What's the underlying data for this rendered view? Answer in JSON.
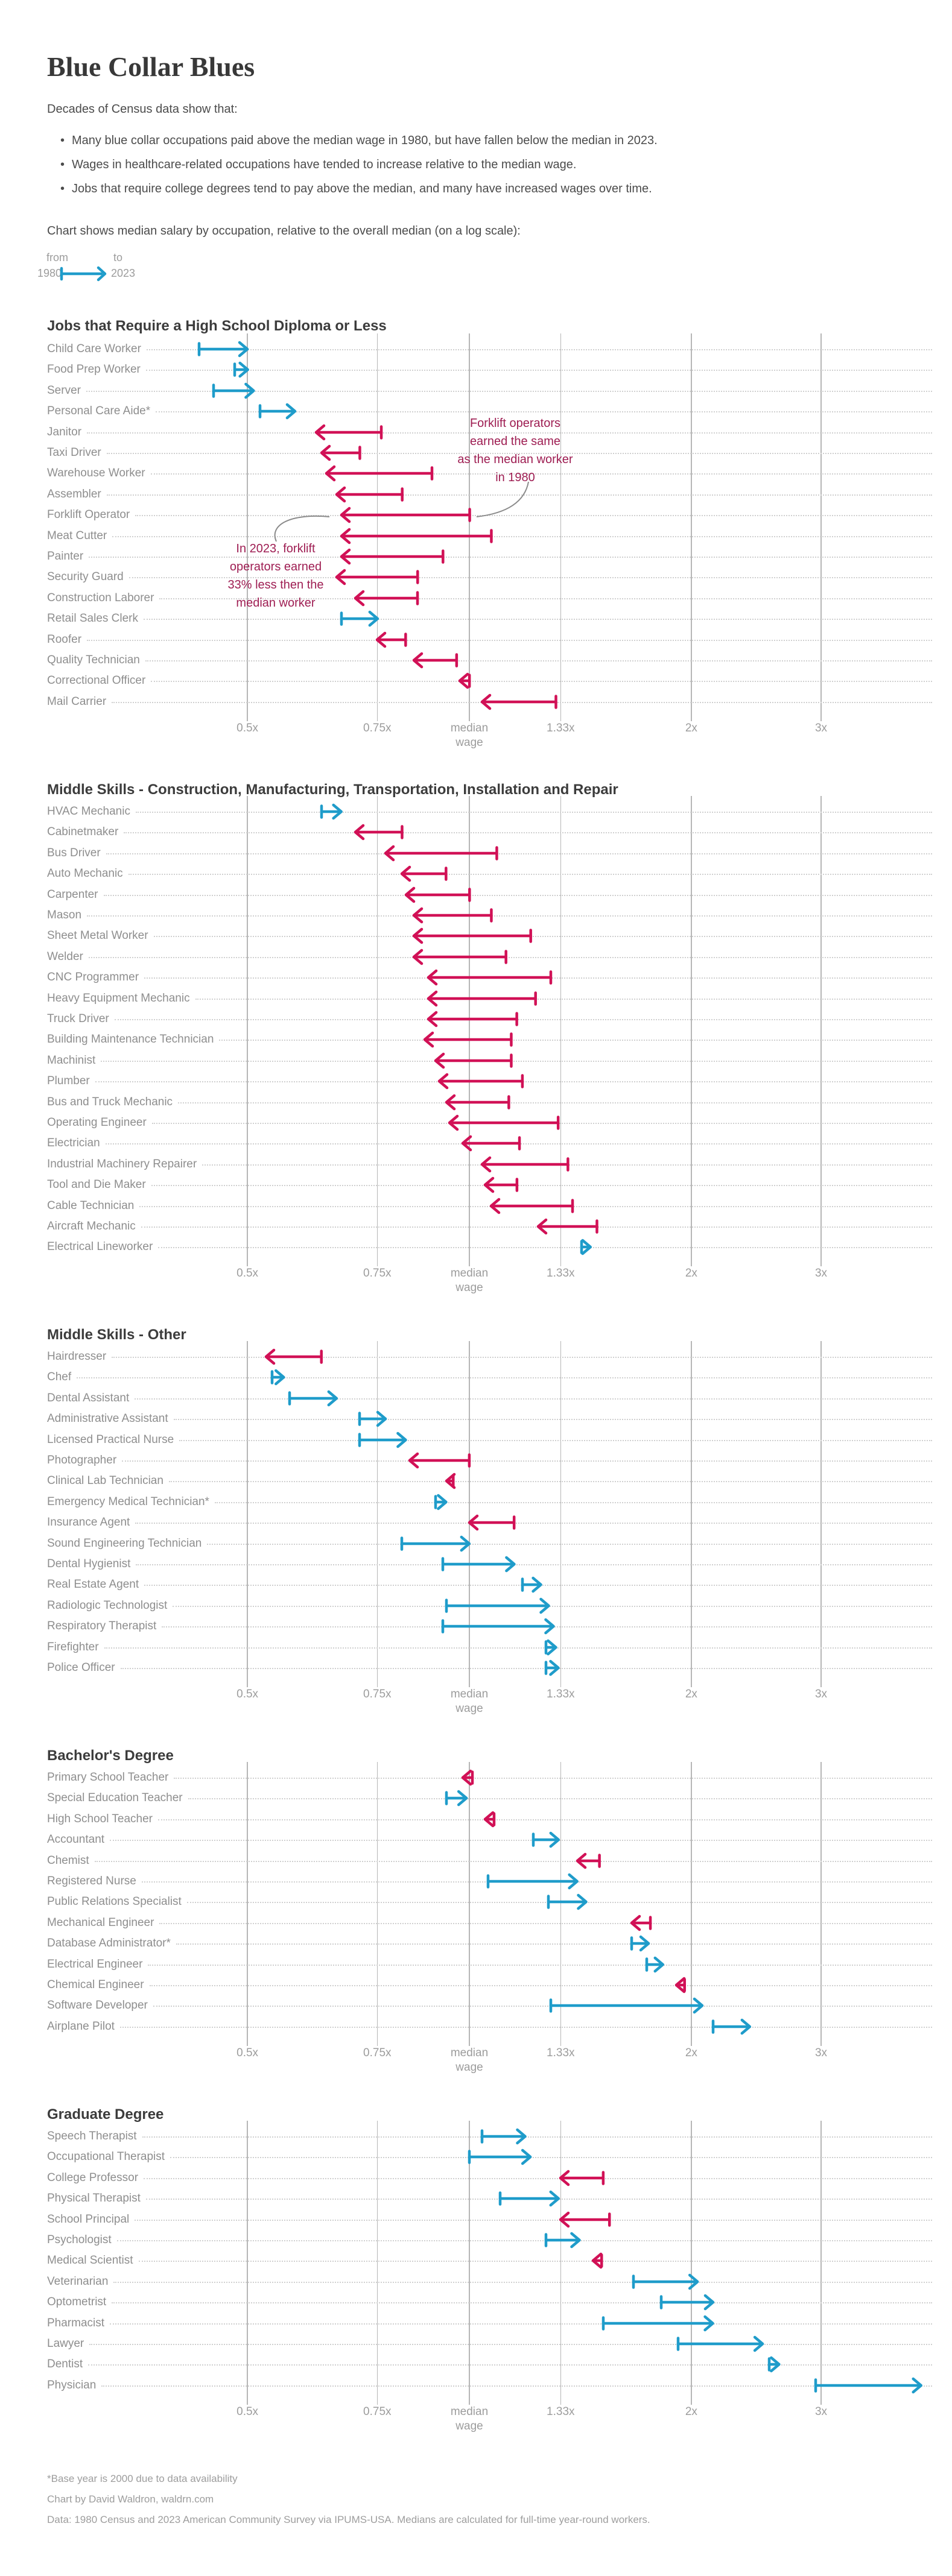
{
  "title": "Blue Collar Blues",
  "intro": "Decades of Census data show that:",
  "bullets": [
    "Many blue collar occupations paid above the median wage in 1980, but have fallen below the median in 2023.",
    "Wages in healthcare-related occupations have tended to increase relative to the median wage.",
    "Jobs that require college degrees tend to pay above the median, and many have increased wages over time."
  ],
  "chart_note": "Chart shows median salary by occupation, relative to the overall median (on a log scale):",
  "legend": {
    "from_label": "from",
    "from_year": "1980",
    "to_label": "to",
    "to_year": "2023"
  },
  "annotations": {
    "forklift_1980": {
      "lines": [
        "Forklift operators",
        "earned the same",
        "as the median worker",
        "in 1980"
      ]
    },
    "forklift_2023": {
      "lines": [
        "In 2023, forklift",
        "operators earned",
        "33% less then the",
        "median worker"
      ]
    }
  },
  "axis": {
    "scale": "log",
    "tick_values": [
      0.5,
      0.75,
      1,
      1.33,
      2,
      3
    ],
    "tick_labels": [
      "0.5x",
      "0.75x",
      "median",
      "1.33x",
      "2x",
      "3x"
    ],
    "median_label_line2": "wage"
  },
  "colors": {
    "increase": "#1f9cca",
    "decrease": "#d11156",
    "annotation": "#9e1d52",
    "connector": "#8a8a8a",
    "gridline": "#b6b6b6",
    "leader": "#d0d0d0",
    "row_label": "#8e8e8e",
    "tick_label": "#9c9c9c",
    "section_title": "#3c3c3c",
    "title": "#383838",
    "body": "#4b4b4b",
    "footnote": "#9d9d9d"
  },
  "chart_data": {
    "type": "dumbbell-arrow",
    "unit": "multiple of overall median wage",
    "x_scale": "log",
    "xlim": [
      0.42,
      4.3
    ],
    "from_year": "1980",
    "to_year": "2023",
    "tick_values": [
      0.5,
      0.75,
      1,
      1.33,
      2,
      3
    ],
    "sections": [
      {
        "title": "Jobs that Require a High School Diploma or Less",
        "rows": [
          {
            "label": "Child Care Worker",
            "from": 0.43,
            "to": 0.5
          },
          {
            "label": "Food Prep Worker",
            "from": 0.48,
            "to": 0.5
          },
          {
            "label": "Server",
            "from": 0.45,
            "to": 0.51
          },
          {
            "label": "Personal Care Aide*",
            "from": 0.52,
            "to": 0.58
          },
          {
            "label": "Janitor",
            "from": 0.76,
            "to": 0.62
          },
          {
            "label": "Taxi Driver",
            "from": 0.71,
            "to": 0.63
          },
          {
            "label": "Warehouse Worker",
            "from": 0.89,
            "to": 0.64
          },
          {
            "label": "Assembler",
            "from": 0.81,
            "to": 0.66
          },
          {
            "label": "Forklift Operator",
            "from": 1.0,
            "to": 0.67
          },
          {
            "label": "Meat Cutter",
            "from": 1.07,
            "to": 0.67
          },
          {
            "label": "Painter",
            "from": 0.92,
            "to": 0.67
          },
          {
            "label": "Security Guard",
            "from": 0.85,
            "to": 0.66
          },
          {
            "label": "Construction Laborer",
            "from": 0.85,
            "to": 0.7
          },
          {
            "label": "Retail Sales Clerk",
            "from": 0.67,
            "to": 0.75
          },
          {
            "label": "Roofer",
            "from": 0.82,
            "to": 0.75
          },
          {
            "label": "Quality Technician",
            "from": 0.96,
            "to": 0.84
          },
          {
            "label": "Correctional Officer",
            "from": 1.0,
            "to": 0.97
          },
          {
            "label": "Mail Carrier",
            "from": 1.31,
            "to": 1.04
          }
        ]
      },
      {
        "title": "Middle Skills - Construction, Manufacturing, Transportation, Installation and Repair",
        "rows": [
          {
            "label": "HVAC Mechanic",
            "from": 0.63,
            "to": 0.67
          },
          {
            "label": "Cabinetmaker",
            "from": 0.81,
            "to": 0.7
          },
          {
            "label": "Bus Driver",
            "from": 1.09,
            "to": 0.77
          },
          {
            "label": "Auto Mechanic",
            "from": 0.93,
            "to": 0.81
          },
          {
            "label": "Carpenter",
            "from": 1.0,
            "to": 0.82
          },
          {
            "label": "Mason",
            "from": 1.07,
            "to": 0.84
          },
          {
            "label": "Sheet Metal Worker",
            "from": 1.21,
            "to": 0.84
          },
          {
            "label": "Welder",
            "from": 1.12,
            "to": 0.84
          },
          {
            "label": "CNC Programmer",
            "from": 1.29,
            "to": 0.88
          },
          {
            "label": "Heavy Equipment Mechanic",
            "from": 1.23,
            "to": 0.88
          },
          {
            "label": "Truck Driver",
            "from": 1.16,
            "to": 0.88
          },
          {
            "label": "Building Maintenance Technician",
            "from": 1.14,
            "to": 0.87
          },
          {
            "label": "Machinist",
            "from": 1.14,
            "to": 0.9
          },
          {
            "label": "Plumber",
            "from": 1.18,
            "to": 0.91
          },
          {
            "label": "Bus and Truck Mechanic",
            "from": 1.13,
            "to": 0.93
          },
          {
            "label": "Operating Engineer",
            "from": 1.32,
            "to": 0.94
          },
          {
            "label": "Electrician",
            "from": 1.17,
            "to": 0.98
          },
          {
            "label": "Industrial Machinery Repairer",
            "from": 1.36,
            "to": 1.04
          },
          {
            "label": "Tool and Die Maker",
            "from": 1.16,
            "to": 1.05
          },
          {
            "label": "Cable Technician",
            "from": 1.38,
            "to": 1.07
          },
          {
            "label": "Aircraft Mechanic",
            "from": 1.49,
            "to": 1.24
          },
          {
            "label": "Electrical Lineworker",
            "from": 1.42,
            "to": 1.46
          }
        ]
      },
      {
        "title": "Middle Skills - Other",
        "rows": [
          {
            "label": "Hairdresser",
            "from": 0.63,
            "to": 0.53
          },
          {
            "label": "Chef",
            "from": 0.54,
            "to": 0.56
          },
          {
            "label": "Dental Assistant",
            "from": 0.57,
            "to": 0.66
          },
          {
            "label": "Administrative Assistant",
            "from": 0.71,
            "to": 0.77
          },
          {
            "label": "Licensed Practical Nurse",
            "from": 0.71,
            "to": 0.82
          },
          {
            "label": "Photographer",
            "from": 1.0,
            "to": 0.83
          },
          {
            "label": "Clinical Lab Technician",
            "from": 0.95,
            "to": 0.93
          },
          {
            "label": "Emergency Medical Technician*",
            "from": 0.9,
            "to": 0.93
          },
          {
            "label": "Insurance Agent",
            "from": 1.15,
            "to": 1.0
          },
          {
            "label": "Sound Engineering Technician",
            "from": 0.81,
            "to": 1.0
          },
          {
            "label": "Dental Hygienist",
            "from": 0.92,
            "to": 1.15
          },
          {
            "label": "Real Estate Agent",
            "from": 1.18,
            "to": 1.25
          },
          {
            "label": "Radiologic Technologist",
            "from": 0.93,
            "to": 1.28
          },
          {
            "label": "Respiratory Therapist",
            "from": 0.92,
            "to": 1.3
          },
          {
            "label": "Firefighter",
            "from": 1.27,
            "to": 1.31
          },
          {
            "label": "Police Officer",
            "from": 1.27,
            "to": 1.32
          }
        ]
      },
      {
        "title": "Bachelor's Degree",
        "rows": [
          {
            "label": "Primary School Teacher",
            "from": 1.01,
            "to": 0.98
          },
          {
            "label": "Special Education Teacher",
            "from": 0.93,
            "to": 0.99
          },
          {
            "label": "High School Teacher",
            "from": 1.08,
            "to": 1.05
          },
          {
            "label": "Accountant",
            "from": 1.22,
            "to": 1.32
          },
          {
            "label": "Chemist",
            "from": 1.5,
            "to": 1.4
          },
          {
            "label": "Registered Nurse",
            "from": 1.06,
            "to": 1.4
          },
          {
            "label": "Public Relations Specialist",
            "from": 1.28,
            "to": 1.44
          },
          {
            "label": "Mechanical Engineer",
            "from": 1.76,
            "to": 1.66
          },
          {
            "label": "Database Administrator*",
            "from": 1.66,
            "to": 1.75
          },
          {
            "label": "Electrical Engineer",
            "from": 1.74,
            "to": 1.83
          },
          {
            "label": "Chemical Engineer",
            "from": 1.96,
            "to": 1.91
          },
          {
            "label": "Software Developer",
            "from": 1.29,
            "to": 2.07
          },
          {
            "label": "Airplane Pilot",
            "from": 2.14,
            "to": 2.4
          }
        ]
      },
      {
        "title": "Graduate Degree",
        "rows": [
          {
            "label": "Speech Therapist",
            "from": 1.04,
            "to": 1.19
          },
          {
            "label": "Occupational Therapist",
            "from": 1.0,
            "to": 1.21
          },
          {
            "label": "College Professor",
            "from": 1.52,
            "to": 1.33
          },
          {
            "label": "Physical Therapist",
            "from": 1.1,
            "to": 1.32
          },
          {
            "label": "School Principal",
            "from": 1.55,
            "to": 1.33
          },
          {
            "label": "Psychologist",
            "from": 1.27,
            "to": 1.41
          },
          {
            "label": "Medical Scientist",
            "from": 1.51,
            "to": 1.47
          },
          {
            "label": "Veterinarian",
            "from": 1.67,
            "to": 2.04
          },
          {
            "label": "Optometrist",
            "from": 1.82,
            "to": 2.14
          },
          {
            "label": "Pharmacist",
            "from": 1.52,
            "to": 2.14
          },
          {
            "label": "Lawyer",
            "from": 1.92,
            "to": 2.5
          },
          {
            "label": "Dentist",
            "from": 2.55,
            "to": 2.63
          },
          {
            "label": "Physician",
            "from": 2.95,
            "to": 4.1
          }
        ]
      }
    ]
  },
  "footnotes": [
    "*Base year is 2000 due to data availability",
    "Chart by David Waldron, waldrn.com",
    "Data: 1980 Census and 2023 American Community Survey via IPUMS-USA. Medians are calculated for full-time year-round workers."
  ]
}
